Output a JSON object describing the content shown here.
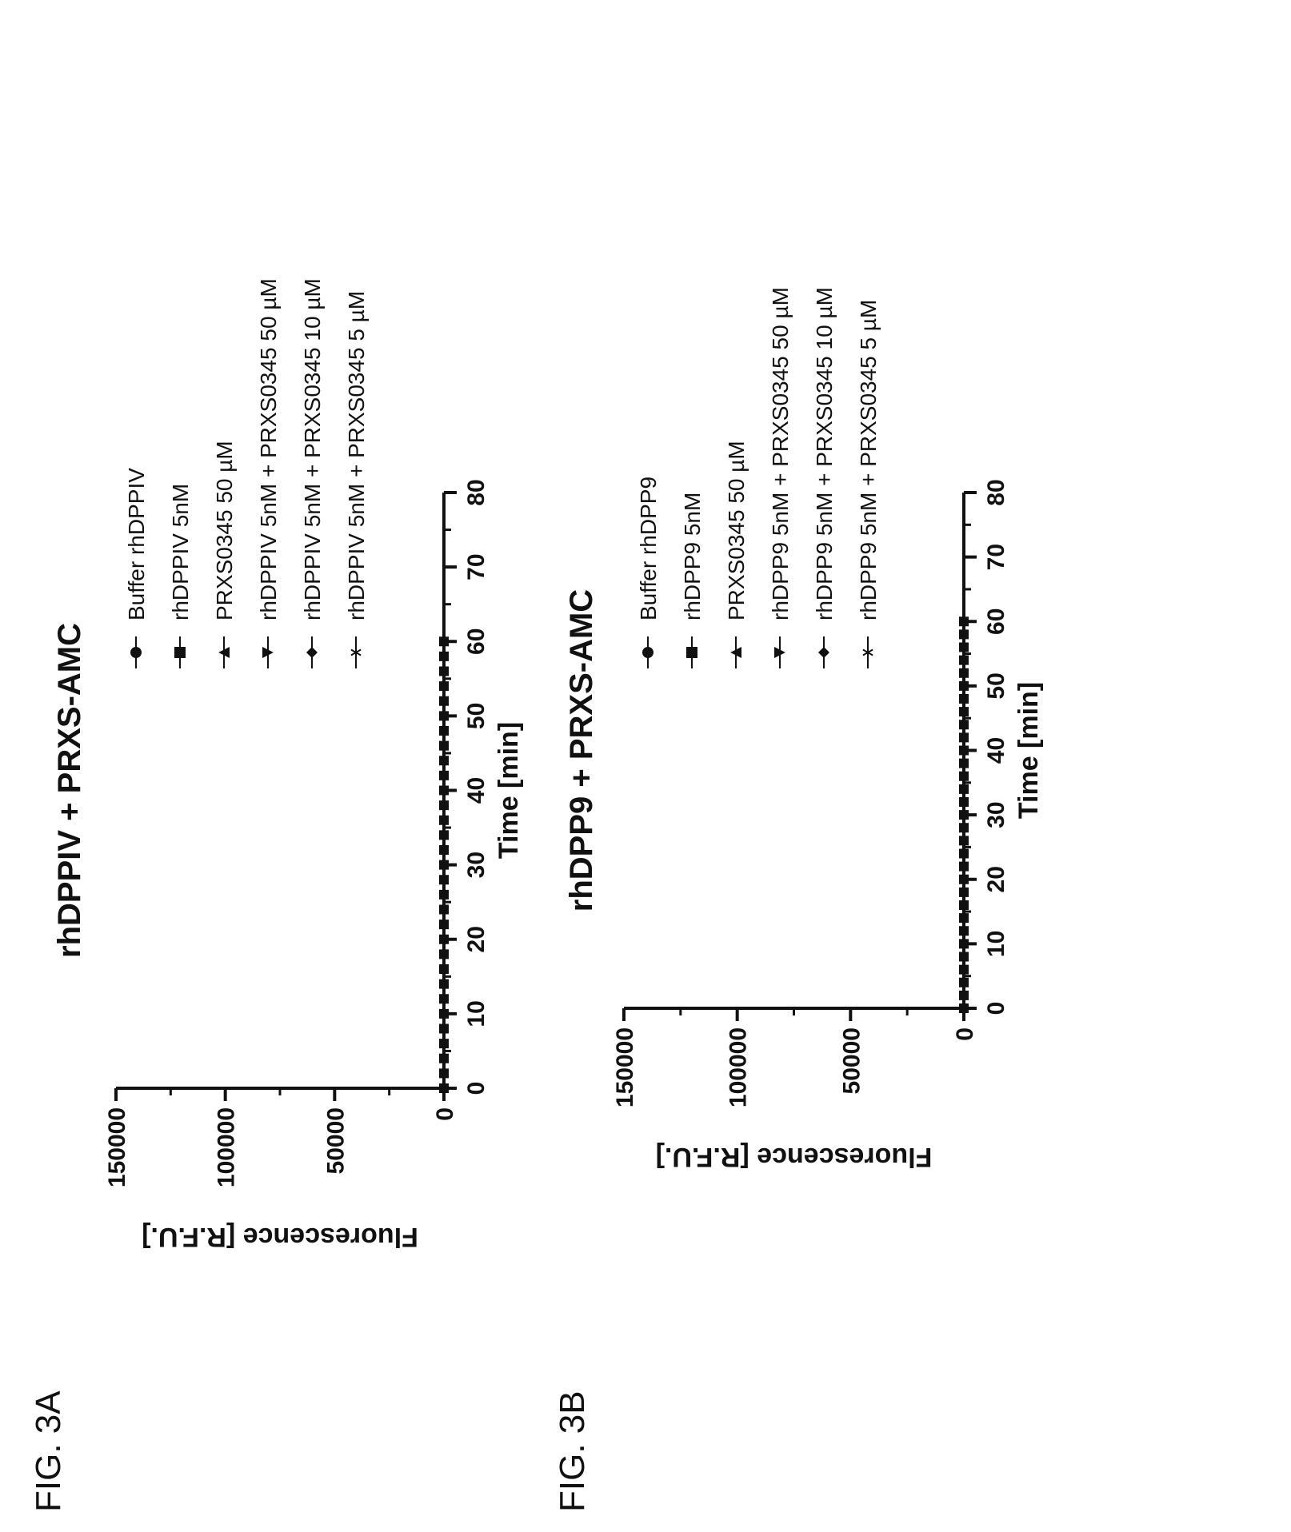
{
  "chart_data": [
    {
      "figure_label": "FIG. 3A",
      "type": "scatter",
      "title": "rhDPPIV + PRXS-AMC",
      "xlabel": "Time [min]",
      "ylabel": "Fluorescence [R.F.U.]",
      "xlim": [
        0,
        80
      ],
      "ylim": [
        0,
        150000
      ],
      "x_ticks": [
        "0",
        "10",
        "20",
        "30",
        "40",
        "50",
        "60",
        "70",
        "80"
      ],
      "y_ticks": [
        "0",
        "50000",
        "100000",
        "150000"
      ],
      "grid": false,
      "legend_position": "right",
      "x": [
        0,
        2,
        4,
        6,
        8,
        10,
        12,
        14,
        16,
        18,
        20,
        22,
        24,
        26,
        28,
        30,
        32,
        34,
        36,
        38,
        40,
        42,
        44,
        46,
        48,
        50,
        52,
        54,
        56,
        58,
        60
      ],
      "series": [
        {
          "name": "Buffer rhDPPIV",
          "marker": "circle",
          "y": 0
        },
        {
          "name": "rhDPPIV 5nM",
          "marker": "square",
          "y": 0
        },
        {
          "name": "PRXS0345 50 µM",
          "marker": "triangle-up",
          "y": 0
        },
        {
          "name": "rhDPPIV 5nM + PRXS0345 50 µM",
          "marker": "triangle-down",
          "y": 0
        },
        {
          "name": "rhDPPIV 5nM + PRXS0345 10 µM",
          "marker": "diamond",
          "y": 0
        },
        {
          "name": "rhDPPIV 5nM + PRXS0345 5 µM",
          "marker": "star",
          "y": 0
        }
      ]
    },
    {
      "figure_label": "FIG. 3B",
      "type": "scatter",
      "title": "rhDPP9 + PRXS-AMC",
      "xlabel": "Time [min]",
      "ylabel": "Fluorescence [R.F.U.]",
      "xlim": [
        0,
        80
      ],
      "ylim": [
        0,
        150000
      ],
      "x_ticks": [
        "0",
        "10",
        "20",
        "30",
        "40",
        "50",
        "60",
        "70",
        "80"
      ],
      "y_ticks": [
        "0",
        "50000",
        "100000",
        "150000"
      ],
      "grid": false,
      "legend_position": "right",
      "x": [
        0,
        2,
        4,
        6,
        8,
        10,
        12,
        14,
        16,
        18,
        20,
        22,
        24,
        26,
        28,
        30,
        32,
        34,
        36,
        38,
        40,
        42,
        44,
        46,
        48,
        50,
        52,
        54,
        56,
        58,
        60
      ],
      "series": [
        {
          "name": "Buffer rhDPP9",
          "marker": "circle",
          "y": 0
        },
        {
          "name": "rhDPP9 5nM",
          "marker": "square",
          "y": 0
        },
        {
          "name": "PRXS0345 50 µM",
          "marker": "triangle-up",
          "y": 0
        },
        {
          "name": "rhDPP9 5nM + PRXS0345 50 µM",
          "marker": "triangle-down",
          "y": 0
        },
        {
          "name": "rhDPP9 5nM + PRXS0345 10 µM",
          "marker": "diamond",
          "y": 0
        },
        {
          "name": "rhDPP9 5nM + PRXS0345 5 µM",
          "marker": "star",
          "y": 0
        }
      ]
    }
  ]
}
